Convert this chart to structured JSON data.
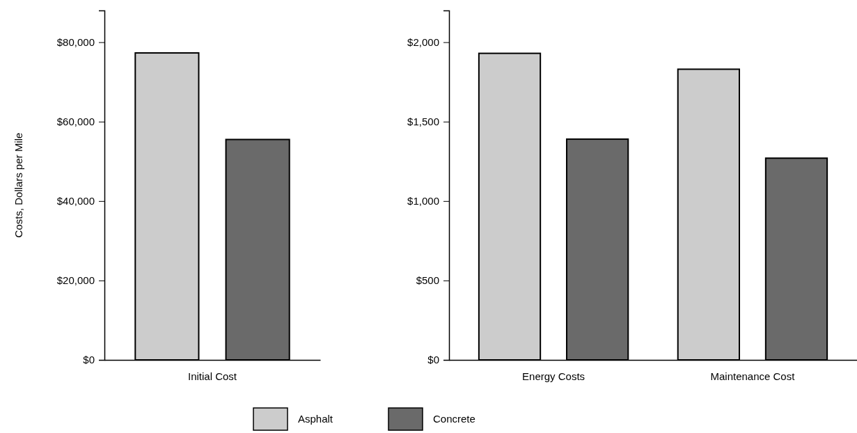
{
  "chart_data": [
    {
      "type": "bar",
      "ylabel": "Costs, Dollars per Mile",
      "categories": [
        "Initial Cost"
      ],
      "legend": "bottom",
      "series": [
        {
          "name": "Asphalt",
          "color": "#cccccc",
          "values": [
            77300
          ]
        },
        {
          "name": "Concrete",
          "color": "#6a6a6a",
          "values": [
            55500
          ]
        }
      ],
      "ylim": [
        0,
        88000
      ],
      "yticks": [
        {
          "value": 0,
          "label": "$0"
        },
        {
          "value": 20000,
          "label": "$20,000"
        },
        {
          "value": 40000,
          "label": "$40,000"
        },
        {
          "value": 60000,
          "label": "$60,000"
        },
        {
          "value": 80000,
          "label": "$80,000"
        }
      ],
      "grid": false
    },
    {
      "type": "bar",
      "categories": [
        "Energy Costs",
        "Maintenance Cost"
      ],
      "series": [
        {
          "color": "#cccccc",
          "values": [
            1930,
            1830
          ]
        },
        {
          "color": "#6a6a6a",
          "values": [
            1390,
            1270
          ]
        }
      ],
      "ylim": [
        0,
        2200
      ],
      "yticks": [
        {
          "value": 0,
          "label": "$0"
        },
        {
          "value": 500,
          "label": "$500"
        },
        {
          "value": 1000,
          "label": "$1,000"
        },
        {
          "value": 1500,
          "label": "$1,500"
        },
        {
          "value": 2000,
          "label": "$2,000"
        }
      ],
      "grid": false
    }
  ]
}
